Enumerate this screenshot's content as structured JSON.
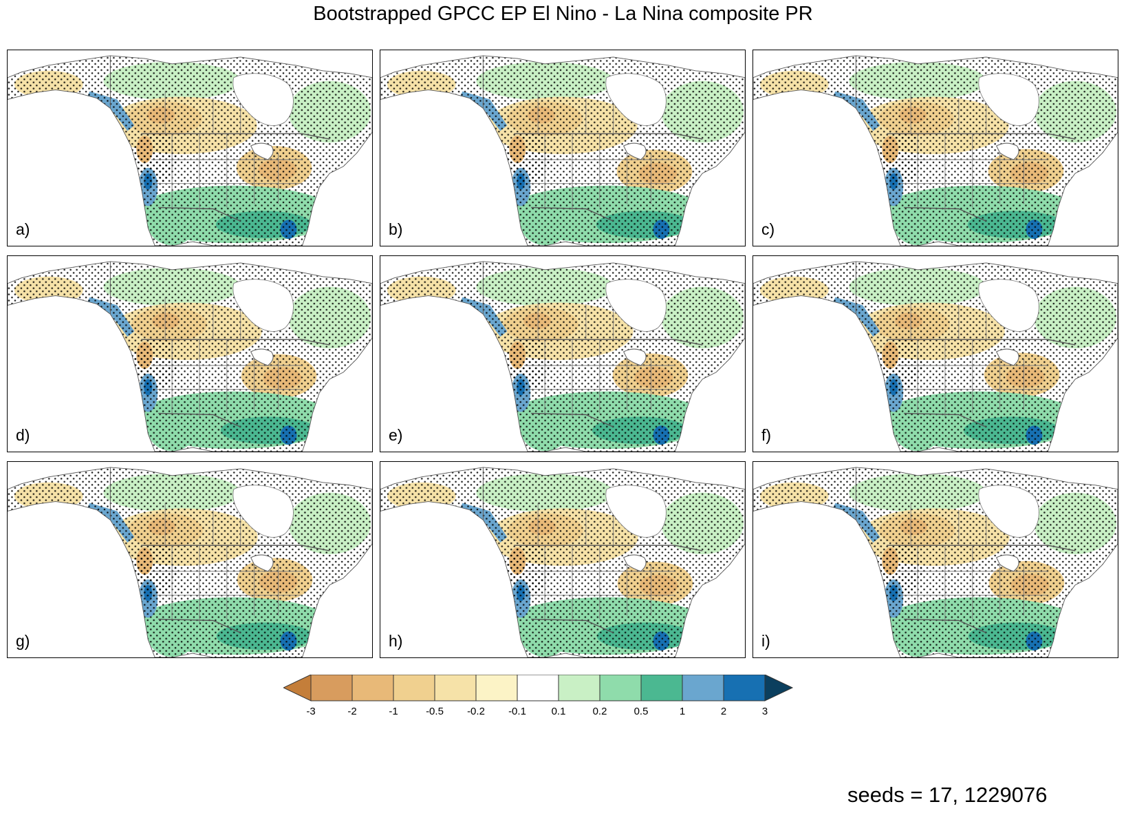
{
  "title": "Bootstrapped GPCC EP El Nino - La Nina composite PR",
  "panels": [
    {
      "label": "a)",
      "variant": 0
    },
    {
      "label": "b)",
      "variant": 1
    },
    {
      "label": "c)",
      "variant": 2
    },
    {
      "label": "d)",
      "variant": 3
    },
    {
      "label": "e)",
      "variant": 4
    },
    {
      "label": "f)",
      "variant": 5
    },
    {
      "label": "g)",
      "variant": 6
    },
    {
      "label": "h)",
      "variant": 7
    },
    {
      "label": "i)",
      "variant": 8
    }
  ],
  "colorbar": {
    "levels": [
      "-3",
      "-2",
      "-1",
      "-0.5",
      "-0.2",
      "-0.1",
      "0.1",
      "0.2",
      "0.5",
      "1",
      "2",
      "3"
    ],
    "colors": [
      "#c47e3a",
      "#d89c5e",
      "#e8b978",
      "#f0d08f",
      "#f6e2a8",
      "#fcf3c6",
      "#ffffff",
      "#c9f0c5",
      "#8fdcab",
      "#4bb891",
      "#6aa6cf",
      "#1770b2",
      "#0b3f5e"
    ]
  },
  "footer": {
    "seeds": "seeds = 17, 1229076"
  }
}
